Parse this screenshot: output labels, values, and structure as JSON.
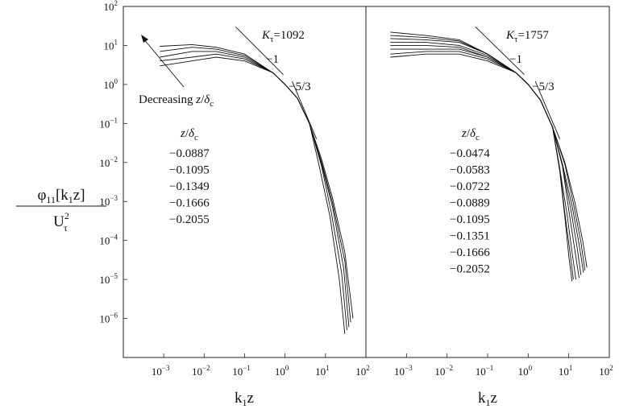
{
  "figure": {
    "y_axis_label": {
      "numerator": "φ11[k1z]",
      "denominator": "Uτ2"
    },
    "x_axis_label": "k1z",
    "y_ticks": [
      "10^2",
      "10^1",
      "10^0",
      "10^-1",
      "10^-2",
      "10^-3",
      "10^-4",
      "10^-5",
      "10^-6"
    ],
    "x_ticks": [
      "10^-3",
      "10^-2",
      "10^-1",
      "10^0",
      "10^1",
      "10^2"
    ]
  },
  "chart_data": [
    {
      "type": "line",
      "panel": "left",
      "title": "Kτ=1092",
      "xlabel": "k1z",
      "ylabel": "φ11[k1z]/Uτ²",
      "x_scale": "log",
      "y_scale": "log",
      "xlim": [
        0.0001,
        100
      ],
      "ylim": [
        1e-07,
        100
      ],
      "grid": false,
      "legend_title": "z/δc",
      "legend_entries": [
        "-0.0887",
        "-0.1095",
        "-0.1349",
        "-0.1666",
        "-0.2055"
      ],
      "arrow_annotation": "Decreasing z/δc",
      "slope_labels": [
        "-1",
        "-5/3"
      ],
      "series": [
        {
          "name": "-0.0887",
          "x": [
            0.0008,
            0.005,
            0.02,
            0.1,
            0.5,
            1,
            2,
            4,
            8,
            15,
            30,
            48
          ],
          "y": [
            9.5,
            10.5,
            9,
            6,
            2,
            1,
            0.45,
            0.1,
            0.012,
            0.0012,
            5e-05,
            1e-06
          ]
        },
        {
          "name": "-0.1095",
          "x": [
            0.0008,
            0.005,
            0.02,
            0.1,
            0.5,
            1,
            2,
            4,
            8,
            15,
            30,
            42
          ],
          "y": [
            7,
            9,
            8,
            5.5,
            2,
            1,
            0.45,
            0.1,
            0.01,
            0.0009,
            3e-05,
            8e-07
          ]
        },
        {
          "name": "-0.1349",
          "x": [
            0.0008,
            0.005,
            0.02,
            0.1,
            0.5,
            1,
            2,
            4,
            8,
            15,
            28,
            38
          ],
          "y": [
            5,
            7,
            7,
            5,
            2,
            1,
            0.45,
            0.1,
            0.009,
            0.0007,
            2e-05,
            6e-07
          ]
        },
        {
          "name": "-0.1666",
          "x": [
            0.0008,
            0.005,
            0.02,
            0.1,
            0.5,
            1,
            2,
            4,
            8,
            14,
            25,
            34
          ],
          "y": [
            4,
            5,
            6,
            4.5,
            2,
            1,
            0.45,
            0.1,
            0.008,
            0.0005,
            1.5e-05,
            5e-07
          ]
        },
        {
          "name": "-0.2055",
          "x": [
            0.0008,
            0.005,
            0.02,
            0.1,
            0.5,
            1,
            2,
            4,
            7,
            13,
            22,
            30
          ],
          "y": [
            3,
            4,
            5,
            4,
            2,
            1,
            0.45,
            0.1,
            0.008,
            0.0004,
            1e-05,
            4e-07
          ]
        }
      ]
    },
    {
      "type": "line",
      "panel": "right",
      "title": "Kτ=1757",
      "xlabel": "k1z",
      "ylabel": "φ11[k1z]/Uτ²",
      "x_scale": "log",
      "y_scale": "log",
      "xlim": [
        0.0001,
        100
      ],
      "ylim": [
        1e-07,
        100
      ],
      "grid": false,
      "legend_title": "z/δc",
      "legend_entries": [
        "-0.0474",
        "-0.0583",
        "-0.0722",
        "-0.0889",
        "-0.1095",
        "-0.1351",
        "-0.1666",
        "-0.2052"
      ],
      "slope_labels": [
        "-1",
        "-5/3"
      ],
      "series": [
        {
          "name": "-0.0474",
          "x": [
            0.0004,
            0.003,
            0.02,
            0.1,
            0.5,
            1,
            2,
            4,
            8,
            14,
            22,
            28
          ],
          "y": [
            22,
            18,
            14,
            6,
            2,
            1,
            0.4,
            0.08,
            0.01,
            0.001,
            0.0001,
            2e-05
          ]
        },
        {
          "name": "-0.0583",
          "x": [
            0.0004,
            0.003,
            0.02,
            0.1,
            0.5,
            1,
            2,
            4,
            8,
            13,
            20,
            25
          ],
          "y": [
            18,
            16,
            13,
            6,
            2,
            1,
            0.4,
            0.08,
            0.009,
            0.0009,
            9e-05,
            1.7e-05
          ]
        },
        {
          "name": "-0.0722",
          "x": [
            0.0004,
            0.003,
            0.02,
            0.1,
            0.5,
            1,
            2,
            4,
            7,
            12,
            18,
            23
          ],
          "y": [
            15,
            14,
            12,
            6,
            2,
            1,
            0.4,
            0.08,
            0.009,
            0.0008,
            8e-05,
            1.5e-05
          ]
        },
        {
          "name": "-0.0889",
          "x": [
            0.0004,
            0.003,
            0.02,
            0.1,
            0.5,
            1,
            2,
            4,
            7,
            11,
            16,
            20
          ],
          "y": [
            12,
            12,
            10,
            5.5,
            2,
            1,
            0.4,
            0.08,
            0.008,
            0.0007,
            7e-05,
            1.3e-05
          ]
        },
        {
          "name": "-0.1095",
          "x": [
            0.0004,
            0.003,
            0.02,
            0.1,
            0.5,
            1,
            2,
            4,
            7,
            10,
            14,
            18
          ],
          "y": [
            10,
            10,
            9,
            5,
            2,
            1,
            0.4,
            0.08,
            0.008,
            0.0006,
            6e-05,
            1.1e-05
          ]
        },
        {
          "name": "-0.1351",
          "x": [
            0.0004,
            0.003,
            0.02,
            0.1,
            0.5,
            1,
            2,
            4,
            6,
            9,
            12,
            15
          ],
          "y": [
            8,
            8,
            8,
            5,
            2,
            1,
            0.4,
            0.08,
            0.007,
            0.0005,
            5e-05,
            1e-05
          ]
        },
        {
          "name": "-0.1666",
          "x": [
            0.0004,
            0.003,
            0.02,
            0.1,
            0.5,
            1,
            2,
            4,
            6,
            8,
            11,
            13
          ],
          "y": [
            6,
            7,
            7,
            4.5,
            2,
            1,
            0.4,
            0.08,
            0.007,
            0.0005,
            4e-05,
            1e-05
          ]
        },
        {
          "name": "-0.2052",
          "x": [
            0.0004,
            0.003,
            0.02,
            0.1,
            0.5,
            1,
            2,
            4,
            6,
            8,
            10,
            12
          ],
          "y": [
            5,
            6,
            6,
            4,
            2,
            1,
            0.4,
            0.08,
            0.006,
            0.0004,
            4e-05,
            9e-06
          ]
        }
      ]
    }
  ]
}
